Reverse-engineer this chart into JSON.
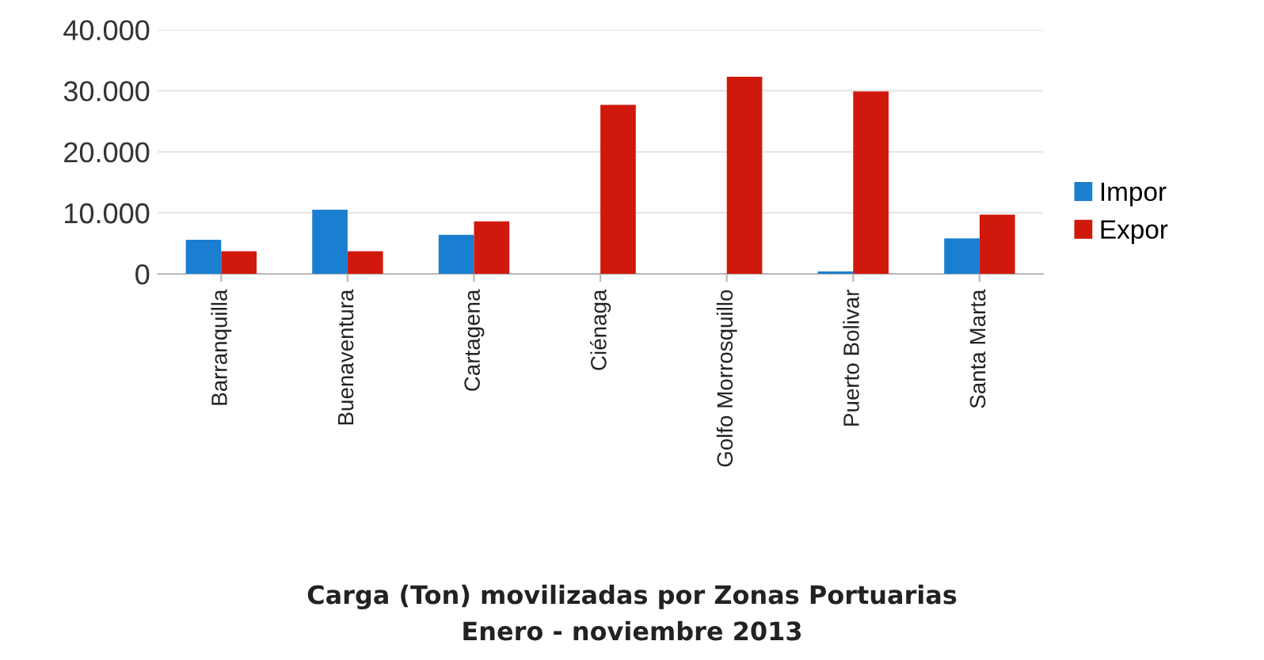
{
  "chart_data": {
    "type": "bar",
    "title": "Carga (Ton) movilizadas por Zonas Portuarias",
    "subtitle": "Enero - noviembre 2013",
    "categories": [
      "Barranquilla",
      "Buenaventura",
      "Cartagena",
      "Ciénaga",
      "Golfo Morrosquillo",
      "Puerto Bolivar",
      "Santa Marta"
    ],
    "series": [
      {
        "name": "Impor",
        "color": "#1a7fd0",
        "values": [
          5600,
          10500,
          6400,
          null,
          null,
          400,
          5800
        ]
      },
      {
        "name": "Expor",
        "color": "#d0190c",
        "values": [
          3700,
          3700,
          8600,
          27700,
          32300,
          29900,
          9700
        ]
      }
    ],
    "ylim": [
      0,
      40000
    ],
    "yticks": [
      {
        "value": 0,
        "label": "0"
      },
      {
        "value": 10000,
        "label": "10.000"
      },
      {
        "value": 20000,
        "label": "20.000"
      },
      {
        "value": 30000,
        "label": "30.000"
      },
      {
        "value": 40000,
        "label": "40.000"
      }
    ],
    "grid": "y",
    "legend": "right"
  }
}
